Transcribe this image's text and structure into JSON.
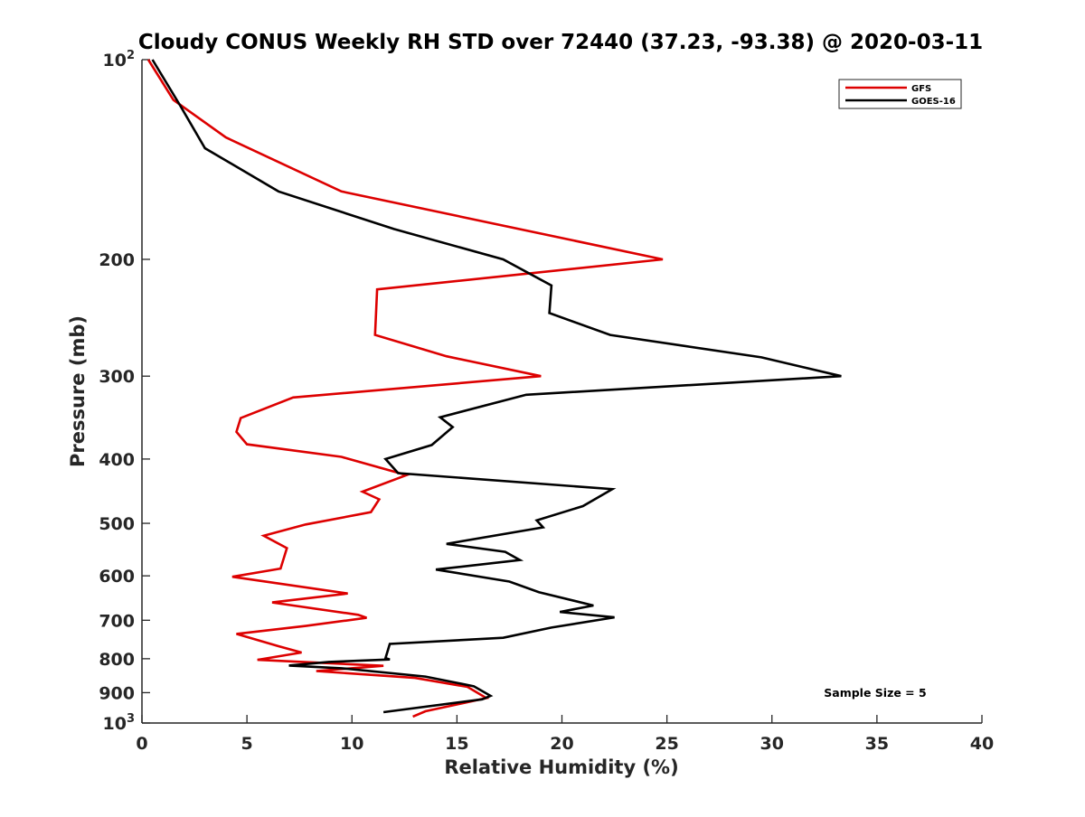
{
  "chart_data": {
    "type": "line",
    "title": "Cloudy CONUS Weekly RH STD over 72440 (37.23, -93.38) @ 2020-03-11",
    "xlabel": "Relative Humidity (%)",
    "ylabel": "Pressure (mb)",
    "xlim": [
      0,
      40
    ],
    "ylim": [
      100,
      1000
    ],
    "y_scale": "log",
    "y_reversed": true,
    "grid": false,
    "legend_position": "top-right",
    "x_ticks": [
      0,
      5,
      10,
      15,
      20,
      25,
      30,
      35,
      40
    ],
    "x_tick_labels": [
      "0",
      "5",
      "10",
      "15",
      "20",
      "25",
      "30",
      "35",
      "40"
    ],
    "y_ticks": [
      100,
      200,
      300,
      400,
      500,
      600,
      700,
      800,
      900,
      1000
    ],
    "y_tick_labels": [
      {
        "base": "10",
        "exp": "2"
      },
      {
        "base": "200",
        "exp": ""
      },
      {
        "base": "300",
        "exp": ""
      },
      {
        "base": "400",
        "exp": ""
      },
      {
        "base": "500",
        "exp": ""
      },
      {
        "base": "600",
        "exp": ""
      },
      {
        "base": "700",
        "exp": ""
      },
      {
        "base": "800",
        "exp": ""
      },
      {
        "base": "900",
        "exp": ""
      },
      {
        "base": "10",
        "exp": "3"
      }
    ],
    "annotation": "Sample Size = 5",
    "series": [
      {
        "name": "GFS",
        "color": "#dd0000",
        "points": [
          [
            0.3,
            100
          ],
          [
            1.5,
            115
          ],
          [
            4.0,
            131
          ],
          [
            9.5,
            158
          ],
          [
            24.8,
            200
          ],
          [
            11.2,
            222
          ],
          [
            11.1,
            260
          ],
          [
            14.5,
            280
          ],
          [
            19.0,
            300
          ],
          [
            7.2,
            323
          ],
          [
            4.7,
            347
          ],
          [
            4.5,
            364
          ],
          [
            5.0,
            380
          ],
          [
            9.5,
            397
          ],
          [
            12.6,
            423
          ],
          [
            10.5,
            448
          ],
          [
            11.3,
            460
          ],
          [
            10.9,
            481
          ],
          [
            7.8,
            502
          ],
          [
            5.8,
            522
          ],
          [
            6.9,
            545
          ],
          [
            6.6,
            585
          ],
          [
            4.3,
            602
          ],
          [
            9.8,
            638
          ],
          [
            6.2,
            658
          ],
          [
            10.3,
            687
          ],
          [
            10.7,
            694
          ],
          [
            7.8,
            714
          ],
          [
            4.5,
            734
          ],
          [
            6.5,
            766
          ],
          [
            7.6,
            783
          ],
          [
            5.5,
            803
          ],
          [
            11.5,
            820
          ],
          [
            8.3,
            835
          ],
          [
            13.0,
            855
          ],
          [
            15.5,
            882
          ],
          [
            16.4,
            917
          ],
          [
            13.5,
            960
          ],
          [
            12.9,
            978
          ]
        ]
      },
      {
        "name": "GOES-16",
        "color": "#000000",
        "points": [
          [
            0.5,
            100
          ],
          [
            1.8,
            117
          ],
          [
            3.0,
            136
          ],
          [
            6.5,
            158
          ],
          [
            12.0,
            180
          ],
          [
            17.2,
            200
          ],
          [
            19.5,
            219
          ],
          [
            19.4,
            241
          ],
          [
            22.3,
            260
          ],
          [
            29.5,
            281
          ],
          [
            33.3,
            300
          ],
          [
            18.3,
            320
          ],
          [
            14.2,
            346
          ],
          [
            14.8,
            358
          ],
          [
            13.8,
            381
          ],
          [
            11.6,
            400
          ],
          [
            12.2,
            420
          ],
          [
            22.4,
            444
          ],
          [
            21.0,
            471
          ],
          [
            18.8,
            495
          ],
          [
            19.1,
            507
          ],
          [
            14.5,
            537
          ],
          [
            17.3,
            552
          ],
          [
            18.0,
            568
          ],
          [
            14.0,
            587
          ],
          [
            17.5,
            612
          ],
          [
            18.9,
            635
          ],
          [
            21.5,
            665
          ],
          [
            19.9,
            680
          ],
          [
            22.5,
            693
          ],
          [
            19.5,
            718
          ],
          [
            17.2,
            744
          ],
          [
            11.8,
            760
          ],
          [
            11.6,
            798
          ],
          [
            11.8,
            802
          ],
          [
            8.9,
            809
          ],
          [
            7.0,
            819
          ],
          [
            9.5,
            827
          ],
          [
            13.5,
            851
          ],
          [
            15.8,
            880
          ],
          [
            16.6,
            910
          ],
          [
            16.2,
            921
          ],
          [
            11.5,
            963
          ]
        ]
      }
    ]
  }
}
